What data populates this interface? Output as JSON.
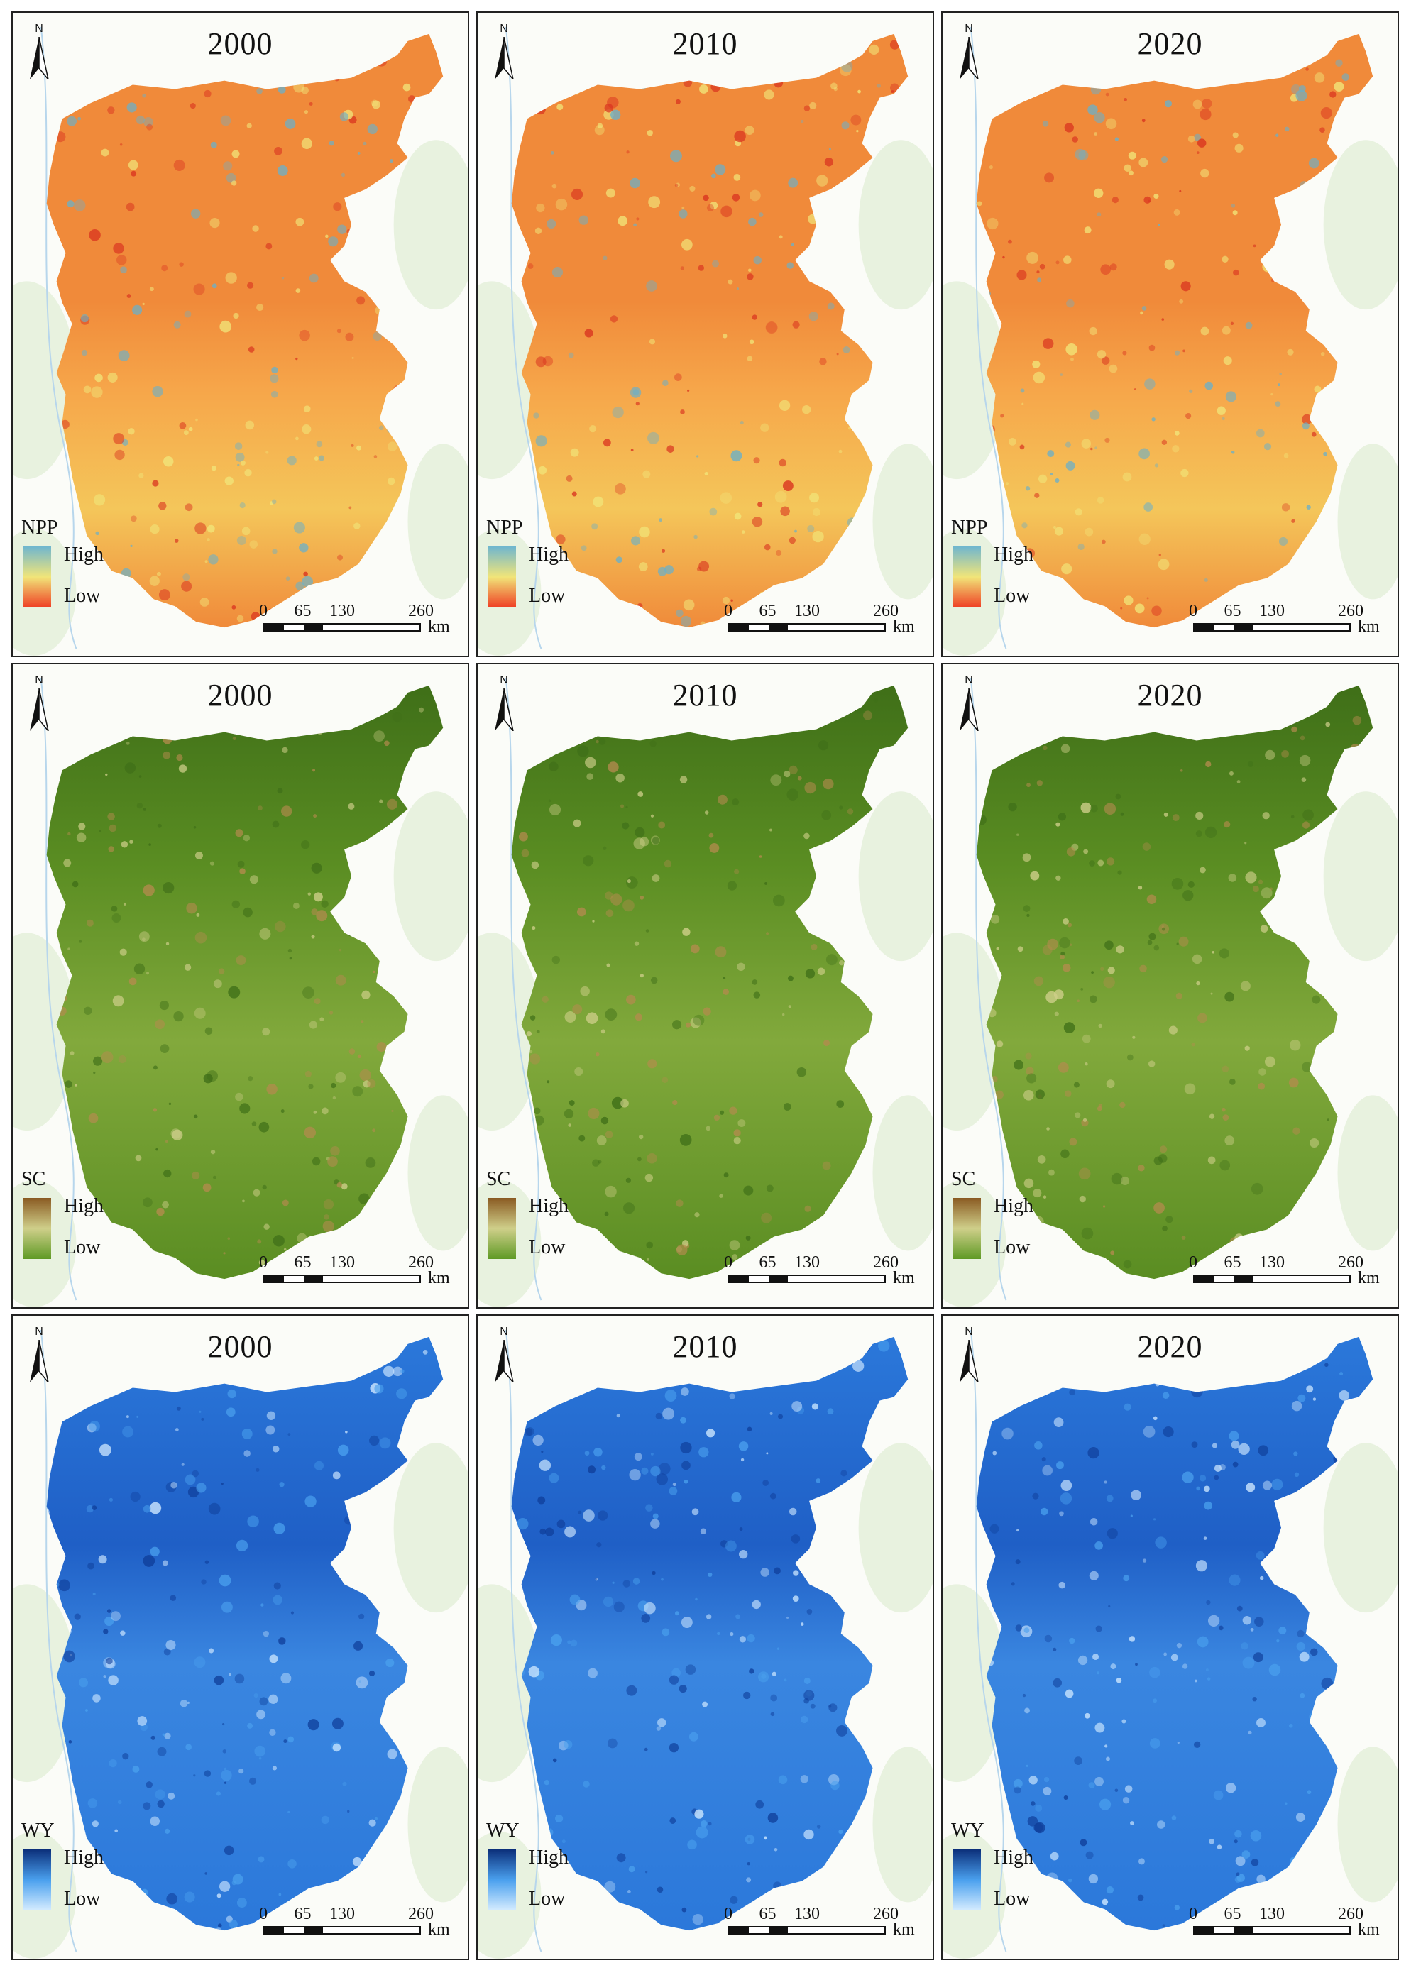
{
  "rows": [
    {
      "key": "npp",
      "legend_title": "NPP",
      "legend_high": "High",
      "legend_low": "Low",
      "colors": {
        "high": "#6fb6cf",
        "mid": "#f1e579",
        "low": "#ef3f24",
        "base": "#f08a3a",
        "base2": "#f6a64a",
        "accent": "#d9331f",
        "speck": "#6bb0c8"
      },
      "panels": [
        {
          "year": "2000"
        },
        {
          "year": "2010"
        },
        {
          "year": "2020"
        }
      ]
    },
    {
      "key": "sc",
      "legend_title": "SC",
      "legend_high": "High",
      "legend_low": "Low",
      "colors": {
        "high": "#8a5a22",
        "mid": "#cfcf8a",
        "low": "#5f9a25",
        "base": "#5a8d22",
        "base2": "#82a93c",
        "accent": "#3f6f18",
        "speck": "#b48b4e"
      },
      "panels": [
        {
          "year": "2000"
        },
        {
          "year": "2010"
        },
        {
          "year": "2020"
        }
      ]
    },
    {
      "key": "wy",
      "legend_title": "WY",
      "legend_high": "High",
      "legend_low": "Low",
      "colors": {
        "high": "#0b2f7a",
        "mid": "#4aa0ee",
        "low": "#d5ecff",
        "base": "#2b78da",
        "base2": "#1f5fc6",
        "accent": "#0f3e9a",
        "speck": "#cfe8ff"
      },
      "panels": [
        {
          "year": "2000"
        },
        {
          "year": "2010"
        },
        {
          "year": "2020"
        }
      ]
    }
  ],
  "scale": {
    "ticks": [
      "0",
      "65",
      "130",
      "260"
    ],
    "unit": "km"
  },
  "north_label": "N"
}
